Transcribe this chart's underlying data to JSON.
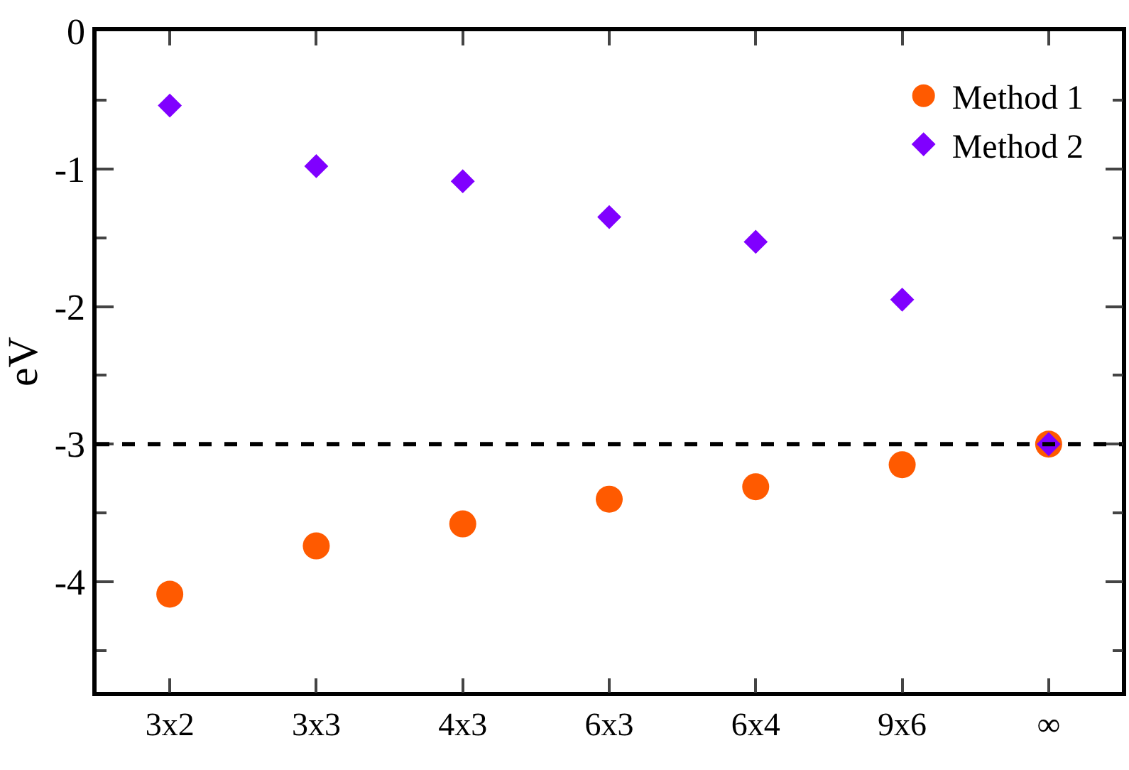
{
  "chart_data": {
    "type": "scatter",
    "ylabel": "eV",
    "categories": [
      "3x2",
      "3x3",
      "4x3",
      "6x3",
      "6x4",
      "9x6",
      "∞"
    ],
    "series": [
      {
        "name": "Method 1",
        "color": "#ff5a00",
        "marker": "circle",
        "values": [
          -4.09,
          -3.74,
          -3.58,
          -3.4,
          -3.31,
          -3.15,
          -3.0
        ]
      },
      {
        "name": "Method 2",
        "color": "#8000ff",
        "marker": "diamond",
        "values": [
          -0.54,
          -0.98,
          -1.09,
          -1.35,
          -1.53,
          -1.95,
          -3.0
        ]
      }
    ],
    "ylim": [
      -4.8,
      0
    ],
    "yticks": [
      0,
      -1,
      -2,
      -3,
      -4
    ],
    "ref_lines": [
      {
        "axis": "y",
        "value": -3,
        "color": "#000000",
        "line_style": "dashed"
      }
    ],
    "grid": false,
    "legend": "top right"
  }
}
